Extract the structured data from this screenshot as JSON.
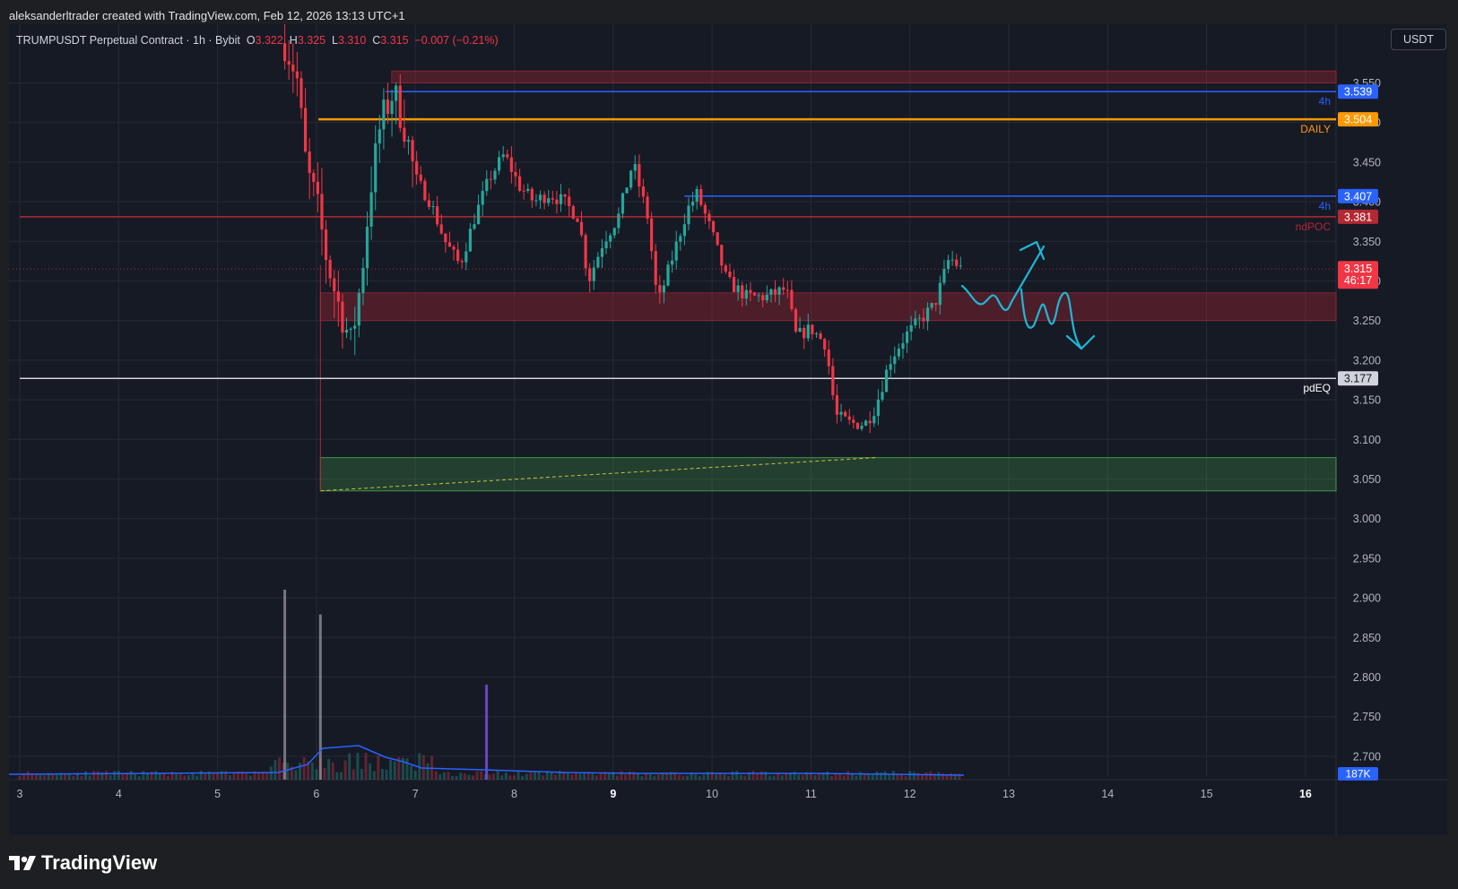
{
  "header": {
    "credit": "aleksanderltrader created with TradingView.com, Feb 12, 2026 13:13 UTC+1"
  },
  "legend": {
    "symbol": "TRUMPUSDT Perpetual Contract · 1h · Bybit",
    "o_label": "O",
    "o_value": "3.322",
    "h_label": "H",
    "h_value": "3.325",
    "l_label": "L",
    "l_value": "3.310",
    "c_label": "C",
    "c_value": "3.315",
    "change": "−0.007 (−0.21%)"
  },
  "currency_button": "USDT",
  "brand": "TradingView",
  "colors": {
    "up": "#26a69a",
    "down": "#f23645",
    "bg": "#161a25",
    "grid": "#262a35",
    "blue": "#2962ff",
    "orange": "#ff9800",
    "drawing": "#1eb8d6"
  },
  "chart_data": {
    "type": "candlestick",
    "timeframe": "1h",
    "symbol": "TRUMPUSDT",
    "exchange": "Bybit",
    "ylim": [
      2.66,
      3.59
    ],
    "y_ticks": [
      "3.550",
      "3.500",
      "3.450",
      "3.400",
      "3.350",
      "3.300",
      "3.250",
      "3.200",
      "3.150",
      "3.100",
      "3.050",
      "3.000",
      "2.950",
      "2.900",
      "2.850",
      "2.800",
      "2.750",
      "2.700"
    ],
    "x_ticks": [
      {
        "label": "3",
        "day": 3
      },
      {
        "label": "4",
        "day": 4
      },
      {
        "label": "5",
        "day": 5
      },
      {
        "label": "6",
        "day": 6
      },
      {
        "label": "7",
        "day": 7
      },
      {
        "label": "8",
        "day": 8
      },
      {
        "label": "9",
        "day": 9,
        "bold": true
      },
      {
        "label": "10",
        "day": 10
      },
      {
        "label": "11",
        "day": 11
      },
      {
        "label": "12",
        "day": 12
      },
      {
        "label": "13",
        "day": 13
      },
      {
        "label": "14",
        "day": 14
      },
      {
        "label": "15",
        "day": 15
      },
      {
        "label": "16",
        "day": 16,
        "bold": true
      }
    ],
    "price_path": [
      [
        5.68,
        3.6
      ],
      [
        5.8,
        3.56
      ],
      [
        5.9,
        3.44
      ],
      [
        6.0,
        3.4
      ],
      [
        6.1,
        3.33
      ],
      [
        6.2,
        3.28
      ],
      [
        6.35,
        3.22
      ],
      [
        6.45,
        3.3
      ],
      [
        6.55,
        3.42
      ],
      [
        6.65,
        3.5
      ],
      [
        6.78,
        3.54
      ],
      [
        6.9,
        3.49
      ],
      [
        7.0,
        3.43
      ],
      [
        7.15,
        3.4
      ],
      [
        7.3,
        3.35
      ],
      [
        7.45,
        3.32
      ],
      [
        7.6,
        3.38
      ],
      [
        7.75,
        3.43
      ],
      [
        7.9,
        3.46
      ],
      [
        8.05,
        3.42
      ],
      [
        8.2,
        3.4
      ],
      [
        8.35,
        3.41
      ],
      [
        8.5,
        3.4
      ],
      [
        8.65,
        3.38
      ],
      [
        8.75,
        3.3
      ],
      [
        8.9,
        3.35
      ],
      [
        9.05,
        3.38
      ],
      [
        9.2,
        3.45
      ],
      [
        9.35,
        3.38
      ],
      [
        9.45,
        3.27
      ],
      [
        9.6,
        3.33
      ],
      [
        9.75,
        3.39
      ],
      [
        9.85,
        3.41
      ],
      [
        10.0,
        3.36
      ],
      [
        10.15,
        3.3
      ],
      [
        10.35,
        3.28
      ],
      [
        10.55,
        3.28
      ],
      [
        10.75,
        3.29
      ],
      [
        10.85,
        3.23
      ],
      [
        11.0,
        3.24
      ],
      [
        11.15,
        3.22
      ],
      [
        11.25,
        3.13
      ],
      [
        11.4,
        3.12
      ],
      [
        11.55,
        3.12
      ],
      [
        11.65,
        3.14
      ],
      [
        11.8,
        3.2
      ],
      [
        11.95,
        3.23
      ],
      [
        12.1,
        3.25
      ],
      [
        12.25,
        3.27
      ],
      [
        12.4,
        3.33
      ],
      [
        12.52,
        3.315
      ]
    ],
    "volume": {
      "label": "187K",
      "spikes": [
        {
          "day": 5.68,
          "rel": 1.0
        },
        {
          "day": 6.04,
          "rel": 0.87
        },
        {
          "day": 7.72,
          "rel": 0.5
        }
      ]
    },
    "levels": [
      {
        "price": 3.539,
        "label": "4h",
        "tag": "3.539",
        "color": "#2962ff"
      },
      {
        "price": 3.504,
        "label": "DAILY",
        "tag": "3.504",
        "color": "#ff9800"
      },
      {
        "price": 3.407,
        "label": "4h",
        "tag": "3.407",
        "color": "#2962ff"
      },
      {
        "price": 3.381,
        "label": "ndPOC",
        "tag": "3.381",
        "color": "#b22833"
      },
      {
        "price": 3.177,
        "label": "pdEQ",
        "tag": "3.177",
        "color": "#d1d4dc"
      }
    ],
    "last_price": {
      "tag": "3.315",
      "countdown": "46:17",
      "price": 3.315
    },
    "zones": [
      {
        "from": 3.55,
        "to": 3.565,
        "color": "red"
      },
      {
        "from": 3.25,
        "to": 3.285,
        "color": "red"
      },
      {
        "from": 3.035,
        "to": 3.077,
        "color": "green"
      }
    ]
  }
}
